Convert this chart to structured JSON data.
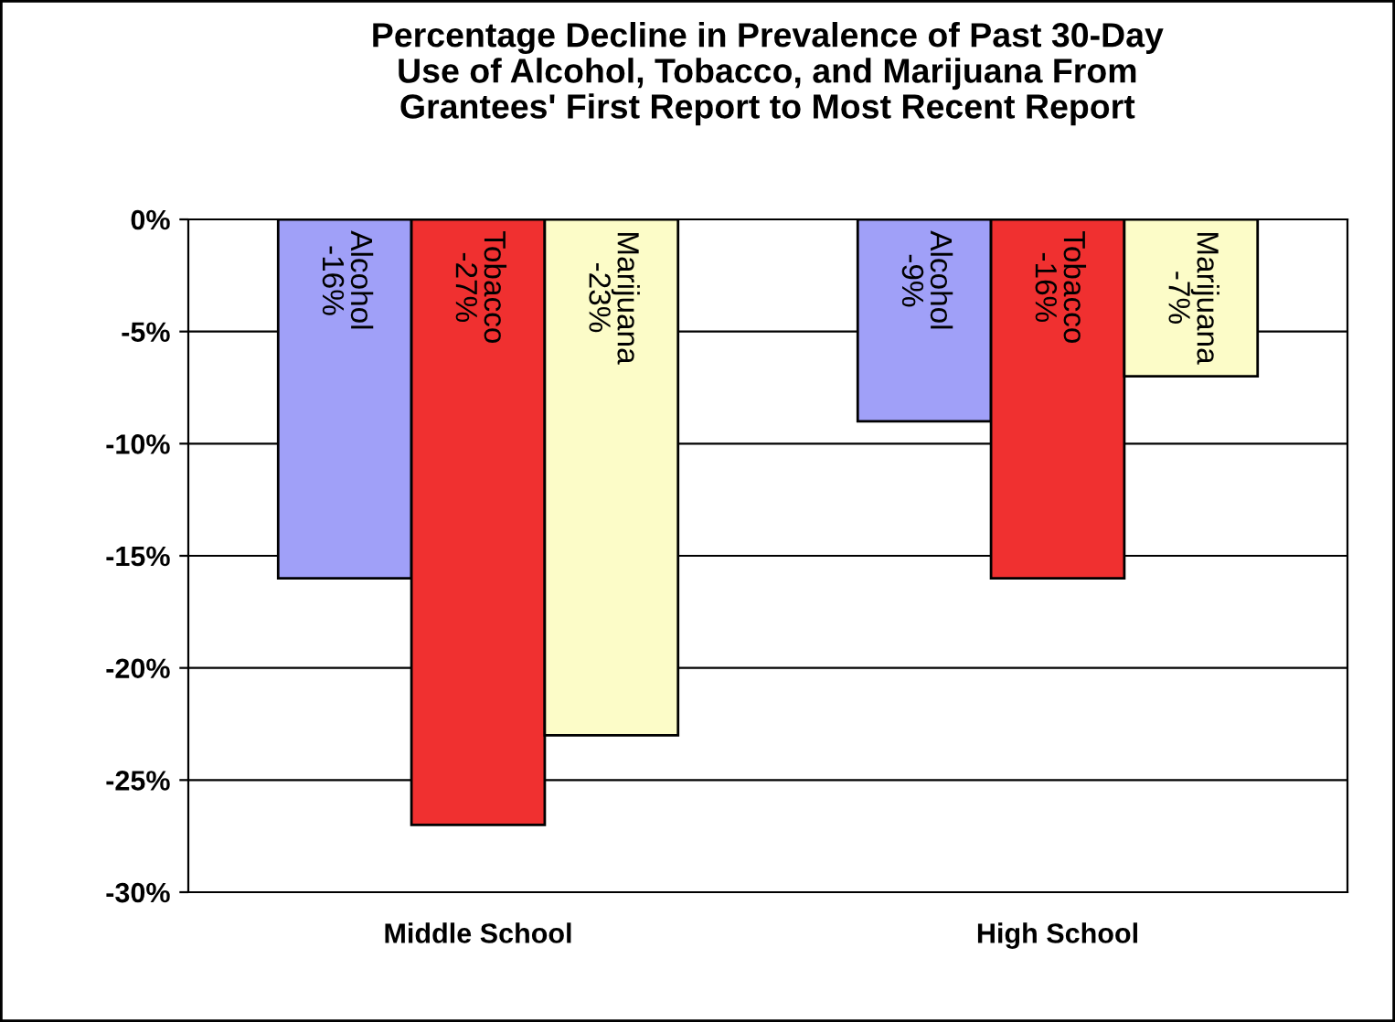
{
  "chart_data": {
    "type": "bar",
    "title": "Percentage Decline in Prevalence of Past 30-Day\nUse of Alcohol, Tobacco, and Marijuana From\nGrantees' First Report to Most Recent Report",
    "categories": [
      "Middle School",
      "High School"
    ],
    "series": [
      {
        "name": "Alcohol",
        "color": "#a0a0f8",
        "values": [
          -16,
          -9
        ],
        "value_labels": [
          "-16%",
          "-9%"
        ]
      },
      {
        "name": "Tobacco",
        "color": "#f03030",
        "values": [
          -27,
          -16
        ],
        "value_labels": [
          "-27%",
          "-16%"
        ]
      },
      {
        "name": "Marijuana",
        "color": "#fcfcc8",
        "values": [
          -23,
          -7
        ],
        "value_labels": [
          "-23%",
          "-7%"
        ]
      }
    ],
    "ylim": [
      -30,
      0
    ],
    "yticks": [
      {
        "value": 0,
        "label": "0%"
      },
      {
        "value": -5,
        "label": "-5%"
      },
      {
        "value": -10,
        "label": "-10%"
      },
      {
        "value": -15,
        "label": "-15%"
      },
      {
        "value": -20,
        "label": "-20%"
      },
      {
        "value": -25,
        "label": "-25%"
      },
      {
        "value": -30,
        "label": "-30%"
      }
    ],
    "grid": "y",
    "legend": false
  }
}
